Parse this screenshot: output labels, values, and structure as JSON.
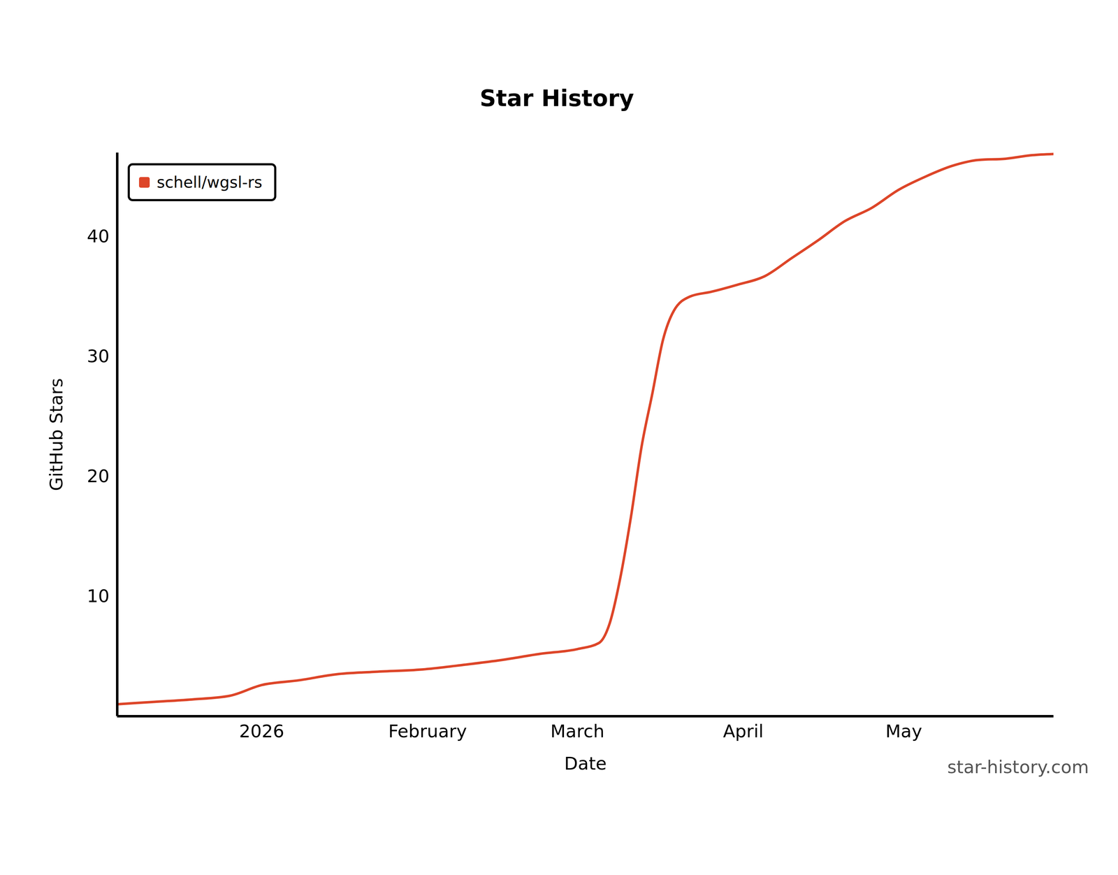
{
  "chart_data": {
    "type": "line",
    "title": "Star History",
    "x_label": "Date",
    "y_label": "GitHub Stars",
    "x": [
      "2025-12-05",
      "2025-12-12",
      "2025-12-19",
      "2025-12-26",
      "2026-01-01",
      "2026-01-08",
      "2026-01-15",
      "2026-01-22",
      "2026-01-31",
      "2026-02-08",
      "2026-02-15",
      "2026-02-22",
      "2026-03-01",
      "2026-03-05",
      "2026-03-07",
      "2026-03-09",
      "2026-03-11",
      "2026-03-13",
      "2026-03-15",
      "2026-03-17",
      "2026-03-19",
      "2026-03-22",
      "2026-03-26",
      "2026-03-31",
      "2026-04-05",
      "2026-04-10",
      "2026-04-15",
      "2026-04-20",
      "2026-04-25",
      "2026-04-30",
      "2026-05-05",
      "2026-05-10",
      "2026-05-15",
      "2026-05-20",
      "2026-05-25",
      "2026-05-29"
    ],
    "series": [
      {
        "name": "schell/wgsl-rs",
        "color": "#dd4528",
        "values": [
          1.0,
          1.2,
          1.4,
          1.7,
          2.6,
          3.0,
          3.5,
          3.7,
          3.9,
          4.3,
          4.7,
          5.2,
          5.6,
          6.1,
          7.7,
          11.5,
          16.6,
          22.5,
          26.9,
          31.4,
          33.8,
          35.0,
          35.4,
          36.0,
          36.7,
          38.2,
          39.7,
          41.3,
          42.4,
          43.9,
          45.0,
          45.9,
          46.4,
          46.5,
          46.8,
          46.9
        ]
      }
    ],
    "xlim": [
      "2025-12-05",
      "2026-05-29"
    ],
    "xticks": [
      {
        "value": "2026-01-01",
        "label": "2026"
      },
      {
        "value": "2026-02-01",
        "label": "February"
      },
      {
        "value": "2026-03-01",
        "label": "March"
      },
      {
        "value": "2026-04-01",
        "label": "April"
      },
      {
        "value": "2026-05-01",
        "label": "May"
      }
    ],
    "ylim": [
      0,
      47
    ],
    "yticks": [
      10,
      20,
      30,
      40
    ],
    "grid": false,
    "legend": "top-left",
    "annotations": [
      "star-history.com"
    ]
  }
}
